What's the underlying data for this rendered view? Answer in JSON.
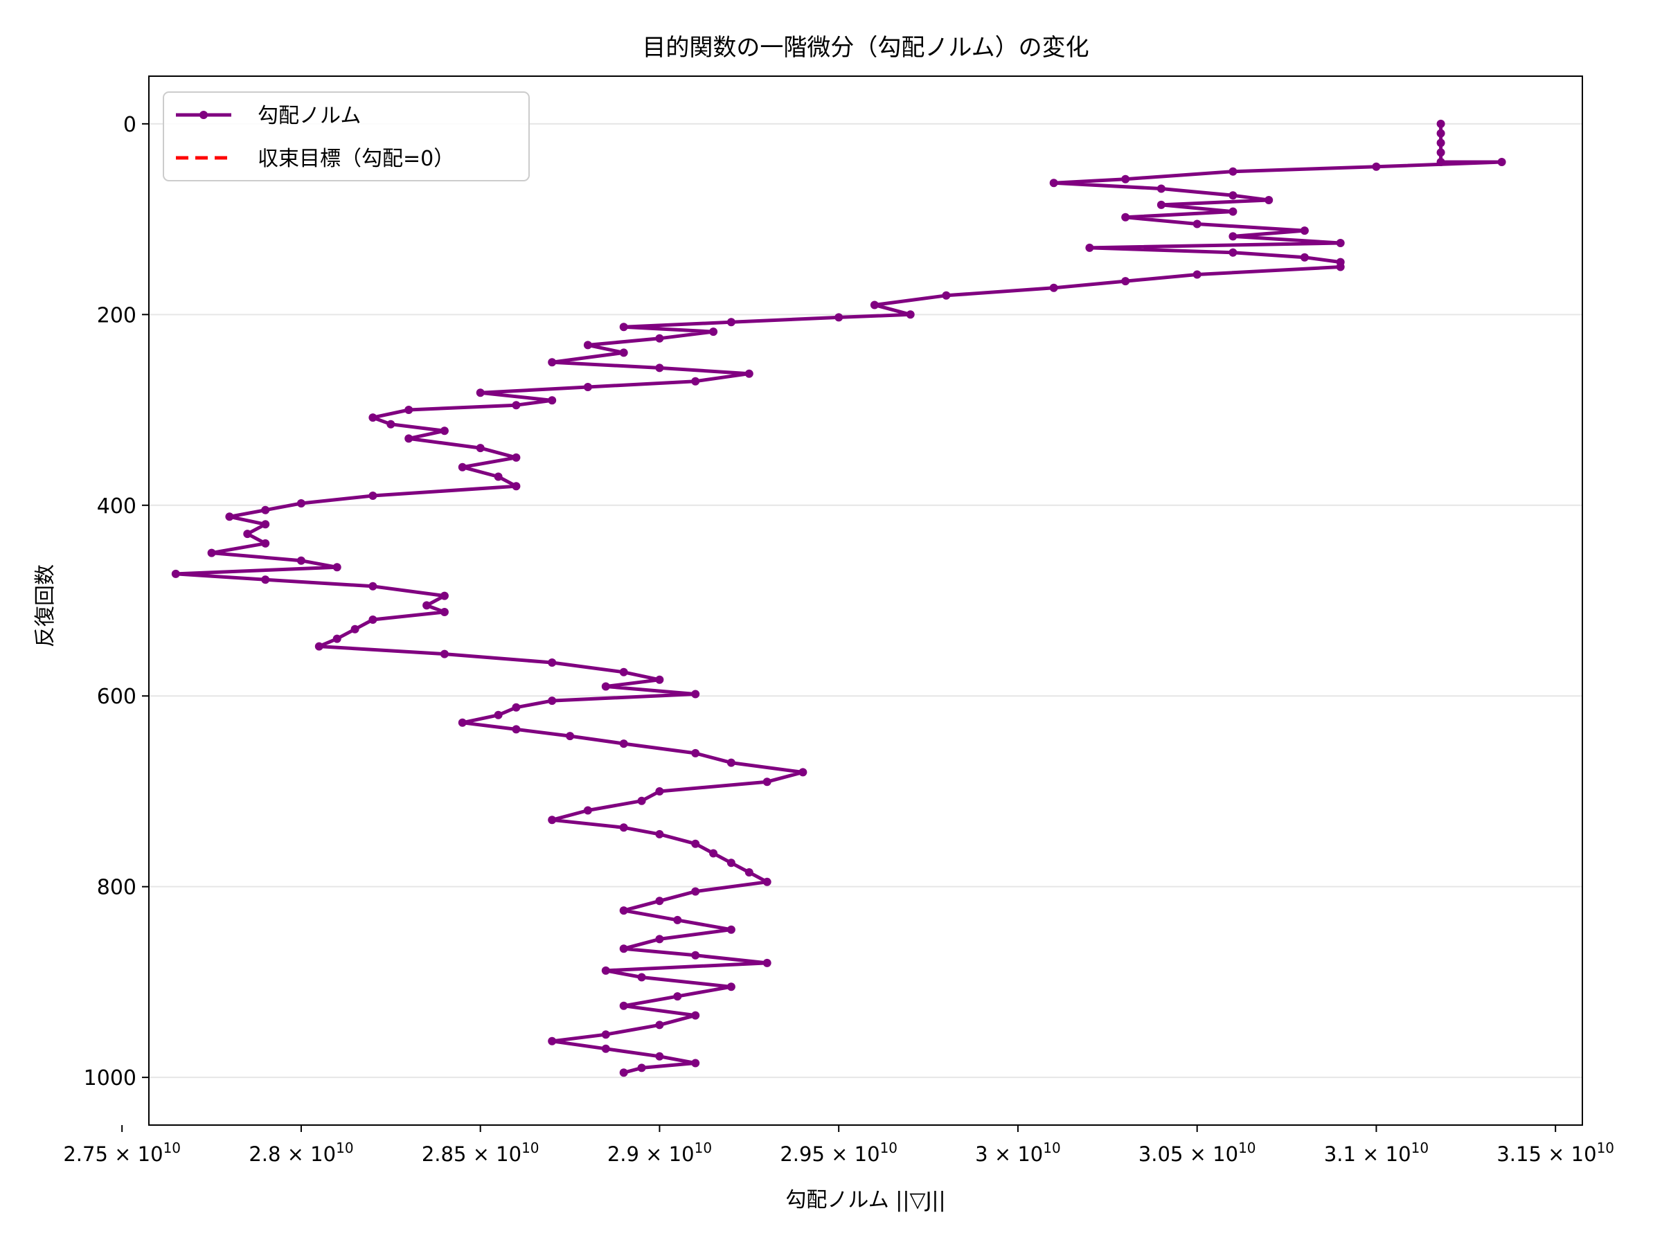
{
  "colors": {
    "series": "#800080",
    "target": "#ff0000",
    "grid": "#e6e6e6",
    "axis": "#000000"
  },
  "chart_data": {
    "type": "line",
    "title": "目的関数の一階微分（勾配ノルム）の変化",
    "xlabel": "勾配ノルム ||▽J||",
    "ylabel": "反復回数",
    "orientation": "x-value, y-iteration (y axis inverted)",
    "xlim": [
      27575000000.0,
      31575000000.0
    ],
    "ylim": [
      1050,
      -50
    ],
    "x_ticks": [
      {
        "value": 27500000000.0,
        "mant": "2.75"
      },
      {
        "value": 28000000000.0,
        "mant": "2.8"
      },
      {
        "value": 28500000000.0,
        "mant": "2.85"
      },
      {
        "value": 29000000000.0,
        "mant": "2.9"
      },
      {
        "value": 29500000000.0,
        "mant": "2.95"
      },
      {
        "value": 30000000000.0,
        "mant": "3"
      },
      {
        "value": 30500000000.0,
        "mant": "3.05"
      },
      {
        "value": 31000000000.0,
        "mant": "3.1"
      },
      {
        "value": 31500000000.0,
        "mant": "3.15"
      }
    ],
    "x_tick_times": "×",
    "x_tick_base": "10",
    "x_tick_exp": "10",
    "y_ticks": [
      "0",
      "200",
      "400",
      "600",
      "800",
      "1000"
    ],
    "y_tick_values": [
      0,
      200,
      400,
      600,
      800,
      1000
    ],
    "grid": "y-only",
    "legend": {
      "position": "upper-left",
      "entries": [
        "勾配ノルム",
        "収束目標（勾配=0）"
      ]
    },
    "series": [
      {
        "name": "勾配ノルム",
        "style": "solid line with dot markers",
        "points": [
          [
            31180000000.0,
            0
          ],
          [
            31180000000.0,
            10
          ],
          [
            31180000000.0,
            20
          ],
          [
            31180000000.0,
            30
          ],
          [
            31180000000.0,
            40
          ],
          [
            31350000000.0,
            40
          ],
          [
            31000000000.0,
            45
          ],
          [
            30600000000.0,
            50
          ],
          [
            30300000000.0,
            58
          ],
          [
            30100000000.0,
            62
          ],
          [
            30400000000.0,
            68
          ],
          [
            30600000000.0,
            75
          ],
          [
            30700000000.0,
            80
          ],
          [
            30400000000.0,
            85
          ],
          [
            30600000000.0,
            92
          ],
          [
            30300000000.0,
            98
          ],
          [
            30500000000.0,
            105
          ],
          [
            30800000000.0,
            112
          ],
          [
            30600000000.0,
            118
          ],
          [
            30900000000.0,
            125
          ],
          [
            30200000000.0,
            130
          ],
          [
            30600000000.0,
            135
          ],
          [
            30800000000.0,
            140
          ],
          [
            30900000000.0,
            145
          ],
          [
            30900000000.0,
            150
          ],
          [
            30500000000.0,
            158
          ],
          [
            30300000000.0,
            165
          ],
          [
            30100000000.0,
            172
          ],
          [
            29800000000.0,
            180
          ],
          [
            29600000000.0,
            190
          ],
          [
            29700000000.0,
            200
          ],
          [
            29500000000.0,
            203
          ],
          [
            29200000000.0,
            208
          ],
          [
            28900000000.0,
            213
          ],
          [
            29150000000.0,
            218
          ],
          [
            29000000000.0,
            225
          ],
          [
            28800000000.0,
            232
          ],
          [
            28900000000.0,
            240
          ],
          [
            28700000000.0,
            250
          ],
          [
            29000000000.0,
            256
          ],
          [
            29250000000.0,
            262
          ],
          [
            29100000000.0,
            270
          ],
          [
            28800000000.0,
            276
          ],
          [
            28500000000.0,
            282
          ],
          [
            28700000000.0,
            290
          ],
          [
            28600000000.0,
            295
          ],
          [
            28300000000.0,
            300
          ],
          [
            28200000000.0,
            308
          ],
          [
            28250000000.0,
            315
          ],
          [
            28400000000.0,
            322
          ],
          [
            28300000000.0,
            330
          ],
          [
            28500000000.0,
            340
          ],
          [
            28600000000.0,
            350
          ],
          [
            28450000000.0,
            360
          ],
          [
            28550000000.0,
            370
          ],
          [
            28600000000.0,
            380
          ],
          [
            28200000000.0,
            390
          ],
          [
            28000000000.0,
            398
          ],
          [
            27900000000.0,
            405
          ],
          [
            27800000000.0,
            412
          ],
          [
            27900000000.0,
            420
          ],
          [
            27850000000.0,
            430
          ],
          [
            27900000000.0,
            440
          ],
          [
            27750000000.0,
            450
          ],
          [
            28000000000.0,
            458
          ],
          [
            28100000000.0,
            465
          ],
          [
            27650000000.0,
            472
          ],
          [
            27900000000.0,
            478
          ],
          [
            28200000000.0,
            485
          ],
          [
            28400000000.0,
            495
          ],
          [
            28350000000.0,
            505
          ],
          [
            28400000000.0,
            512
          ],
          [
            28200000000.0,
            520
          ],
          [
            28150000000.0,
            530
          ],
          [
            28100000000.0,
            540
          ],
          [
            28050000000.0,
            548
          ],
          [
            28400000000.0,
            556
          ],
          [
            28700000000.0,
            565
          ],
          [
            28900000000.0,
            575
          ],
          [
            29000000000.0,
            583
          ],
          [
            28850000000.0,
            590
          ],
          [
            29100000000.0,
            598
          ],
          [
            28700000000.0,
            605
          ],
          [
            28600000000.0,
            612
          ],
          [
            28550000000.0,
            620
          ],
          [
            28450000000.0,
            628
          ],
          [
            28600000000.0,
            635
          ],
          [
            28750000000.0,
            642
          ],
          [
            28900000000.0,
            650
          ],
          [
            29100000000.0,
            660
          ],
          [
            29200000000.0,
            670
          ],
          [
            29400000000.0,
            680
          ],
          [
            29300000000.0,
            690
          ],
          [
            29000000000.0,
            700
          ],
          [
            28950000000.0,
            710
          ],
          [
            28800000000.0,
            720
          ],
          [
            28700000000.0,
            730
          ],
          [
            28900000000.0,
            738
          ],
          [
            29000000000.0,
            745
          ],
          [
            29100000000.0,
            755
          ],
          [
            29150000000.0,
            765
          ],
          [
            29200000000.0,
            775
          ],
          [
            29250000000.0,
            785
          ],
          [
            29300000000.0,
            795
          ],
          [
            29100000000.0,
            805
          ],
          [
            29000000000.0,
            815
          ],
          [
            28900000000.0,
            825
          ],
          [
            29050000000.0,
            835
          ],
          [
            29200000000.0,
            845
          ],
          [
            29000000000.0,
            855
          ],
          [
            28900000000.0,
            865
          ],
          [
            29100000000.0,
            872
          ],
          [
            29300000000.0,
            880
          ],
          [
            28850000000.0,
            888
          ],
          [
            28950000000.0,
            895
          ],
          [
            29200000000.0,
            905
          ],
          [
            29050000000.0,
            915
          ],
          [
            28900000000.0,
            925
          ],
          [
            29100000000.0,
            935
          ],
          [
            29000000000.0,
            945
          ],
          [
            28850000000.0,
            955
          ],
          [
            28700000000.0,
            962
          ],
          [
            28850000000.0,
            970
          ],
          [
            29000000000.0,
            978
          ],
          [
            29100000000.0,
            985
          ],
          [
            28950000000.0,
            990
          ],
          [
            28900000000.0,
            995
          ]
        ]
      },
      {
        "name": "収束目標（勾配=0）",
        "style": "dashed line",
        "x": 0
      }
    ]
  }
}
